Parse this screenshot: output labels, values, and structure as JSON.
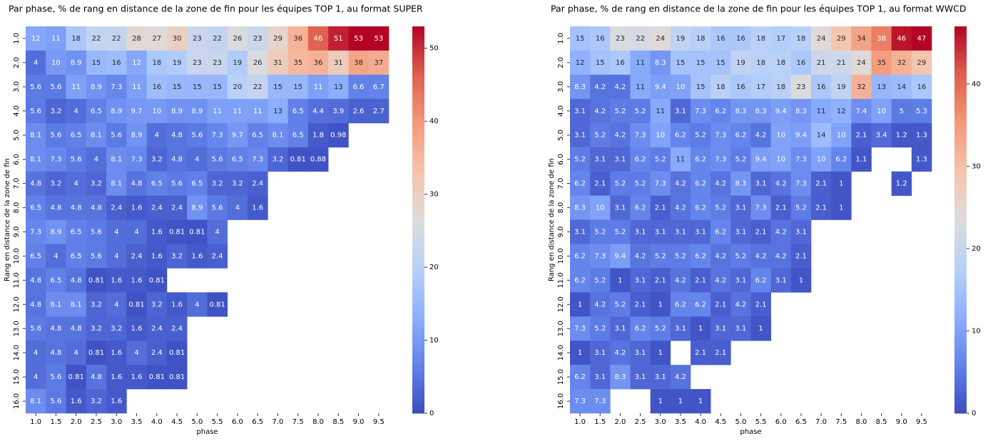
{
  "chart_data": [
    {
      "type": "heatmap",
      "title": "Par phase, % de rang en distance de la zone de fin pour les équipes TOP 1, au format SUPER",
      "xlabel": "phase",
      "ylabel": "Rang en distance de la zone de fin",
      "colormap": "coolwarm",
      "x": [
        "1.0",
        "1.5",
        "2.0",
        "2.5",
        "3.0",
        "3.5",
        "4.0",
        "4.5",
        "5.0",
        "5.5",
        "6.0",
        "6.5",
        "7.0",
        "7.5",
        "8.0",
        "8.5",
        "9.0",
        "9.5"
      ],
      "y": [
        "1.0",
        "2.0",
        "3.0",
        "4.0",
        "5.0",
        "6.0",
        "7.0",
        "8.0",
        "9.0",
        "10.0",
        "11.0",
        "12.0",
        "13.0",
        "14.0",
        "15.0",
        "16.0"
      ],
      "values": [
        [
          12,
          11,
          18,
          22,
          22,
          28,
          27,
          30,
          23,
          22,
          26,
          23,
          29,
          36,
          46,
          51,
          53,
          53
        ],
        [
          4,
          10,
          8.9,
          15,
          16,
          12,
          18,
          19,
          23,
          23,
          19,
          26,
          31,
          35,
          36,
          31,
          38,
          37
        ],
        [
          5.6,
          5.6,
          11,
          8.9,
          7.3,
          11,
          16,
          15,
          15,
          15,
          20,
          22,
          15,
          15,
          11,
          13,
          6.6,
          6.7
        ],
        [
          5.6,
          3.2,
          4,
          6.5,
          8.9,
          9.7,
          10,
          8.9,
          8.9,
          11,
          11,
          11,
          13,
          6.5,
          4.4,
          3.9,
          2.6,
          2.7
        ],
        [
          8.1,
          5.6,
          6.5,
          8.1,
          5.6,
          8.9,
          4,
          4.8,
          5.6,
          7.3,
          9.7,
          6.5,
          8.1,
          6.5,
          1.8,
          0.98,
          null,
          null
        ],
        [
          8.1,
          7.3,
          5.6,
          4,
          8.1,
          7.3,
          3.2,
          4.8,
          4,
          5.6,
          6.5,
          7.3,
          3.2,
          0.81,
          0.88,
          null,
          null,
          null
        ],
        [
          4.8,
          3.2,
          4,
          3.2,
          8.1,
          4.8,
          6.5,
          5.6,
          6.5,
          3.2,
          3.2,
          2.4,
          null,
          null,
          null,
          null,
          null,
          null
        ],
        [
          6.5,
          4.8,
          4.8,
          4.8,
          2.4,
          1.6,
          2.4,
          2.4,
          8.9,
          5.6,
          4,
          1.6,
          null,
          null,
          null,
          null,
          null,
          null
        ],
        [
          7.3,
          8.9,
          6.5,
          5.6,
          4,
          4,
          1.6,
          0.81,
          0.81,
          4,
          null,
          null,
          null,
          null,
          null,
          null,
          null,
          null
        ],
        [
          6.5,
          4,
          6.5,
          5.6,
          4,
          2.4,
          1.6,
          3.2,
          1.6,
          2.4,
          null,
          null,
          null,
          null,
          null,
          null,
          null,
          null
        ],
        [
          4.8,
          6.5,
          4.8,
          0.81,
          1.6,
          1.6,
          0.81,
          null,
          null,
          null,
          null,
          null,
          null,
          null,
          null,
          null,
          null,
          null
        ],
        [
          4.8,
          8.1,
          8.1,
          3.2,
          4,
          0.81,
          3.2,
          1.6,
          4,
          0.81,
          null,
          null,
          null,
          null,
          null,
          null,
          null,
          null
        ],
        [
          5.6,
          4.8,
          4.8,
          3.2,
          3.2,
          1.6,
          2.4,
          2.4,
          null,
          null,
          null,
          null,
          null,
          null,
          null,
          null,
          null,
          null
        ],
        [
          4,
          4.8,
          4,
          0.81,
          1.6,
          4,
          2.4,
          0.81,
          null,
          null,
          null,
          null,
          null,
          null,
          null,
          null,
          null,
          null
        ],
        [
          4,
          5.6,
          0.81,
          4.8,
          1.6,
          1.6,
          0.81,
          0.81,
          null,
          null,
          null,
          null,
          null,
          null,
          null,
          null,
          null,
          null
        ],
        [
          8.1,
          5.6,
          1.6,
          3.2,
          1.6,
          null,
          null,
          null,
          null,
          null,
          null,
          null,
          null,
          null,
          null,
          null,
          null,
          null
        ]
      ],
      "clim": [
        0,
        53
      ],
      "cticks": [
        0,
        10,
        20,
        30,
        40,
        50
      ]
    },
    {
      "type": "heatmap",
      "title": "Par phase, % de rang en distance de la zone de fin pour les équipes TOP 1, au format WWCD",
      "xlabel": "phase",
      "ylabel": "Rang en distance de la zone de fin",
      "colormap": "coolwarm",
      "x": [
        "1.0",
        "1.5",
        "2.0",
        "2.5",
        "3.0",
        "3.5",
        "4.0",
        "4.5",
        "5.0",
        "5.5",
        "6.0",
        "6.5",
        "7.0",
        "7.5",
        "8.0",
        "8.5",
        "9.0",
        "9.5"
      ],
      "y": [
        "1.0",
        "2.0",
        "3.0",
        "4.0",
        "5.0",
        "6.0",
        "7.0",
        "8.0",
        "9.0",
        "10.0",
        "11.0",
        "12.0",
        "13.0",
        "14.0",
        "15.0",
        "16.0"
      ],
      "values": [
        [
          15,
          16,
          23,
          22,
          24,
          19,
          18,
          16,
          16,
          18,
          17,
          18,
          24,
          29,
          34,
          38,
          46,
          47
        ],
        [
          12,
          15,
          16,
          11,
          8.3,
          15,
          15,
          15,
          19,
          18,
          18,
          16,
          21,
          21,
          24,
          35,
          32,
          29
        ],
        [
          8.3,
          4.2,
          4.2,
          11,
          9.4,
          10,
          15,
          18,
          16,
          17,
          18,
          23,
          16,
          19,
          32,
          13,
          14,
          16
        ],
        [
          3.1,
          4.2,
          5.2,
          5.2,
          11,
          3.1,
          7.3,
          6.2,
          8.3,
          8.3,
          9.4,
          8.3,
          11,
          12,
          7.4,
          10,
          5,
          5.3
        ],
        [
          3.1,
          5.2,
          4.2,
          7.3,
          10,
          6.2,
          5.2,
          7.3,
          6.2,
          4.2,
          10,
          9.4,
          14,
          10,
          2.1,
          3.4,
          1.2,
          1.3
        ],
        [
          5.2,
          3.1,
          3.1,
          6.2,
          5.2,
          11,
          6.2,
          7.3,
          5.2,
          9.4,
          10,
          7.3,
          10,
          6.2,
          1.1,
          null,
          null,
          1.3
        ],
        [
          6.2,
          2.1,
          5.2,
          5.2,
          7.3,
          4.2,
          6.2,
          4.2,
          8.3,
          3.1,
          4.2,
          7.3,
          2.1,
          1,
          null,
          null,
          1.2,
          null
        ],
        [
          8.3,
          10,
          3.1,
          6.2,
          2.1,
          4.2,
          6.2,
          5.2,
          3.1,
          7.3,
          2.1,
          5.2,
          2.1,
          1,
          null,
          null,
          null,
          null
        ],
        [
          3.1,
          5.2,
          5.2,
          3.1,
          3.1,
          3.1,
          3.1,
          6.2,
          3.1,
          2.1,
          4.2,
          3.1,
          null,
          null,
          null,
          null,
          null,
          null
        ],
        [
          6.2,
          7.3,
          9.4,
          4.2,
          5.2,
          5.2,
          6.2,
          4.2,
          5.2,
          4.2,
          4.2,
          2.1,
          null,
          null,
          null,
          null,
          null,
          null
        ],
        [
          6.2,
          5.2,
          1,
          3.1,
          2.1,
          4.2,
          2.1,
          4.2,
          3.1,
          6.2,
          3.1,
          1,
          null,
          null,
          null,
          null,
          null,
          null
        ],
        [
          1,
          4.2,
          5.2,
          2.1,
          1,
          6.2,
          6.2,
          2.1,
          4.2,
          2.1,
          null,
          null,
          null,
          null,
          null,
          null,
          null,
          null
        ],
        [
          7.3,
          5.2,
          3.1,
          6.2,
          5.2,
          3.1,
          1,
          3.1,
          3.1,
          1,
          null,
          null,
          null,
          null,
          null,
          null,
          null,
          null
        ],
        [
          1,
          3.1,
          4.2,
          3.1,
          1,
          null,
          2.1,
          2.1,
          null,
          null,
          null,
          null,
          null,
          null,
          null,
          null,
          null,
          null
        ],
        [
          6.2,
          3.1,
          8.3,
          3.1,
          3.1,
          4.2,
          null,
          null,
          null,
          null,
          null,
          null,
          null,
          null,
          null,
          null,
          null,
          null
        ],
        [
          7.3,
          7.3,
          null,
          null,
          1,
          1,
          1,
          null,
          null,
          null,
          null,
          null,
          null,
          null,
          null,
          null,
          null,
          null
        ]
      ],
      "clim": [
        0,
        47
      ],
      "cticks": [
        0,
        10,
        20,
        30,
        40
      ]
    }
  ]
}
